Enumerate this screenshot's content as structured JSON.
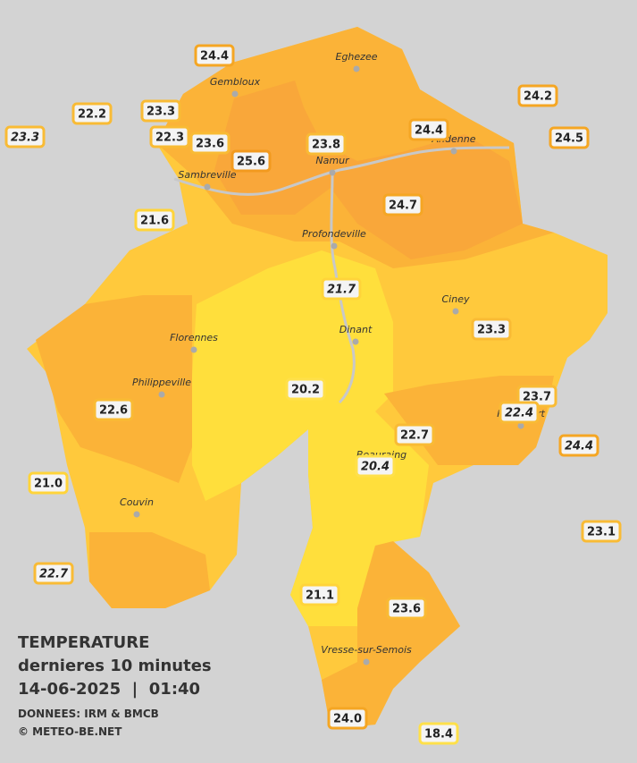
{
  "caption": {
    "title": "TEMPERATURE",
    "subtitle": "dernieres 10 minutes",
    "datetime": "14-06-2025  |  01:40",
    "source": "DONNEES: IRM & BMCB",
    "credit": "© METEO-BE.NET"
  },
  "towns": [
    "Eghezee",
    "Gembloux",
    "Andenne",
    "Namur",
    "Sambreville",
    "Profondeville",
    "Ciney",
    "Dinant",
    "Florennes",
    "Philippeville",
    "Rochefort",
    "Beauraing",
    "Couvin",
    "Vresse-sur-Semois"
  ],
  "stations": [
    {
      "value": "24.4",
      "color": "#f5a623"
    },
    {
      "value": "22.2",
      "color": "#f9bb35"
    },
    {
      "value": "23.3",
      "color": "#f9bb35"
    },
    {
      "value": "23.3",
      "color": "#f9bb35",
      "italic": true
    },
    {
      "value": "22.3",
      "color": "#f9bb35"
    },
    {
      "value": "23.6",
      "color": "#f9bb35"
    },
    {
      "value": "25.6",
      "color": "#f29a1e"
    },
    {
      "value": "23.8",
      "color": "#f9bb35"
    },
    {
      "value": "24.4",
      "color": "#f5a623"
    },
    {
      "value": "24.2",
      "color": "#f5a623"
    },
    {
      "value": "24.5",
      "color": "#f5a623"
    },
    {
      "value": "24.7",
      "color": "#f5a623"
    },
    {
      "value": "21.6",
      "color": "#ffd43a"
    },
    {
      "value": "21.7",
      "color": "#ffd43a",
      "italic": true
    },
    {
      "value": "23.3",
      "color": "#f9bb35"
    },
    {
      "value": "20.2",
      "color": "#ffe04a"
    },
    {
      "value": "23.7",
      "color": "#f9bb35"
    },
    {
      "value": "22.4",
      "color": "#f9bb35",
      "italic": true
    },
    {
      "value": "22.6",
      "color": "#f9bb35"
    },
    {
      "value": "22.7",
      "color": "#f9bb35"
    },
    {
      "value": "24.4",
      "color": "#f5a623",
      "italic": true
    },
    {
      "value": "20.4",
      "color": "#ffe04a",
      "italic": true
    },
    {
      "value": "21.0",
      "color": "#ffd43a"
    },
    {
      "value": "23.1",
      "color": "#f9bb35"
    },
    {
      "value": "22.7",
      "color": "#f9bb35",
      "italic": true
    },
    {
      "value": "21.1",
      "color": "#ffd43a"
    },
    {
      "value": "23.6",
      "color": "#f9bb35"
    },
    {
      "value": "24.0",
      "color": "#f5a623"
    },
    {
      "value": "18.4",
      "color": "#ffe04a"
    }
  ]
}
